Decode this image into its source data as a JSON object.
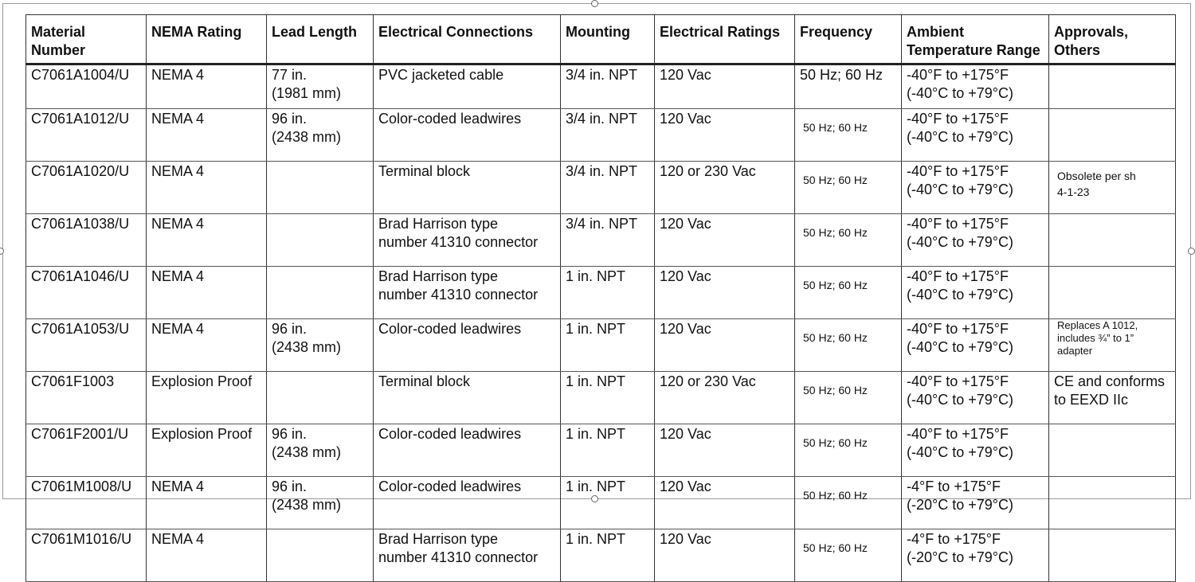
{
  "table": {
    "header": [
      "Material\nNumber",
      "NEMA Rating",
      "Lead Length",
      "Electrical Connections",
      "Mounting",
      "Electrical Ratings",
      "Frequency",
      "Ambient\nTemperature Range",
      "Approvals,\nOthers"
    ],
    "rows": [
      [
        "C7061A1004/U",
        "NEMA 4",
        "77 in.\n(1981 mm)",
        "PVC jacketed cable",
        "3/4 in. NPT",
        "120 Vac",
        "50 Hz; 60 Hz",
        "-40°F to +175°F\n(-40°C to +79°C)",
        ""
      ],
      [
        "C7061A1012/U",
        "NEMA 4",
        "96 in.\n(2438 mm)",
        "Color-coded leadwires",
        "3/4 in. NPT",
        "120 Vac",
        "50 Hz; 60 Hz",
        "-40°F to +175°F\n(-40°C to +79°C)",
        ""
      ],
      [
        "C7061A1020/U",
        "NEMA 4",
        "",
        "Terminal block",
        "3/4 in. NPT",
        "120 or 230 Vac",
        "50 Hz; 60 Hz",
        "-40°F to +175°F\n(-40°C to +79°C)",
        "Obsolete per sh\n4-1-23"
      ],
      [
        "C7061A1038/U",
        "NEMA 4",
        "",
        "Brad Harrison type\nnumber 41310 connector",
        "3/4 in. NPT",
        "120 Vac",
        "50 Hz; 60 Hz",
        "-40°F to +175°F\n(-40°C to +79°C)",
        ""
      ],
      [
        "C7061A1046/U",
        "NEMA 4",
        "",
        "Brad Harrison type\nnumber 41310 connector",
        "1 in. NPT",
        "120 Vac",
        "50 Hz; 60 Hz",
        "-40°F to +175°F\n(-40°C to +79°C)",
        ""
      ],
      [
        "C7061A1053/U",
        "NEMA 4",
        "96 in.\n(2438 mm)",
        "Color-coded leadwires",
        "1 in. NPT",
        "120 Vac",
        "50 Hz; 60 Hz",
        "-40°F to +175°F\n(-40°C to +79°C)",
        "Replaces A 1012,\nincludes ¾” to 1”\nadapter"
      ],
      [
        "C7061F1003",
        "Explosion Proof",
        "",
        "Terminal block",
        "1 in. NPT",
        "120 or 230 Vac",
        "50 Hz; 60 Hz",
        "-40°F to +175°F\n(-40°C to +79°C)",
        "CE and conforms\nto EEXD IIc"
      ],
      [
        "C7061F2001/U",
        "Explosion Proof",
        "96 in.\n(2438 mm)",
        "Color-coded leadwires",
        "1 in. NPT",
        "120 Vac",
        "50 Hz; 60 Hz",
        "-40°F to +175°F\n(-40°C to +79°C)",
        ""
      ],
      [
        "C7061M1008/U",
        "NEMA 4",
        "96 in.\n(2438 mm)",
        "Color-coded leadwires",
        "1 in. NPT",
        "120 Vac",
        "50 Hz; 60 Hz",
        "-4°F to +175°F\n(-20°C to +79°C)",
        ""
      ],
      [
        "C7061M1016/U",
        "NEMA 4",
        "",
        "Brad Harrison type\nnumber 41310 connector",
        "1 in. NPT",
        "120 Vac",
        "50 Hz; 60 Hz",
        "-4°F to +175°F\n(-20°C to +79°C)",
        ""
      ]
    ]
  }
}
